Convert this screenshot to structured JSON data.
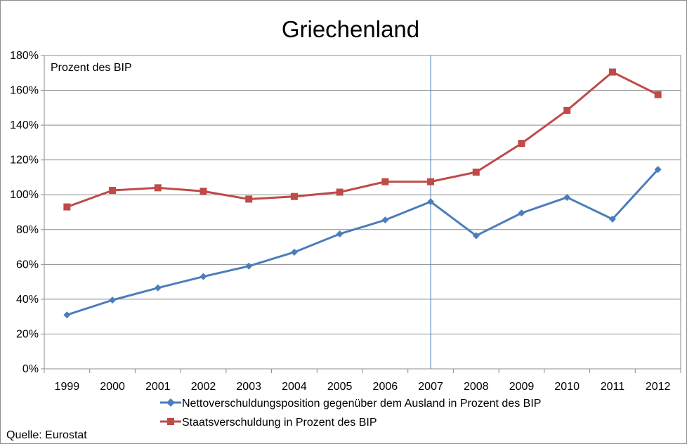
{
  "chart_data": {
    "type": "line",
    "title": "Griechenland",
    "unit_label": "Prozent des BIP",
    "source": "Quelle: Eurostat",
    "categories": [
      "1999",
      "2000",
      "2001",
      "2002",
      "2003",
      "2004",
      "2005",
      "2006",
      "2007",
      "2008",
      "2009",
      "2010",
      "2011",
      "2012"
    ],
    "ylim": [
      0,
      180
    ],
    "yticks": [
      0,
      20,
      40,
      60,
      80,
      100,
      120,
      140,
      160,
      180
    ],
    "ytick_labels": [
      "0%",
      "20%",
      "40%",
      "60%",
      "80%",
      "100%",
      "120%",
      "140%",
      "160%",
      "180%"
    ],
    "grid": true,
    "legend_position": "bottom",
    "vertical_marker": "2007",
    "series": [
      {
        "name": "Nettoverschuldungsposition gegenüber dem Ausland in Prozent des BIP",
        "color": "#4a7ebb",
        "marker": "diamond",
        "values": [
          31,
          39.5,
          46.5,
          53,
          59,
          67,
          77.5,
          85.5,
          96,
          76.5,
          89.5,
          98.5,
          86,
          114.5
        ]
      },
      {
        "name": "Staatsverschuldung in Prozent des BIP",
        "color": "#be4b48",
        "marker": "square",
        "values": [
          93,
          102.5,
          104,
          102,
          97.5,
          99,
          101.5,
          107.5,
          107.5,
          113,
          129.5,
          148.5,
          170.5,
          157.5
        ]
      }
    ]
  }
}
